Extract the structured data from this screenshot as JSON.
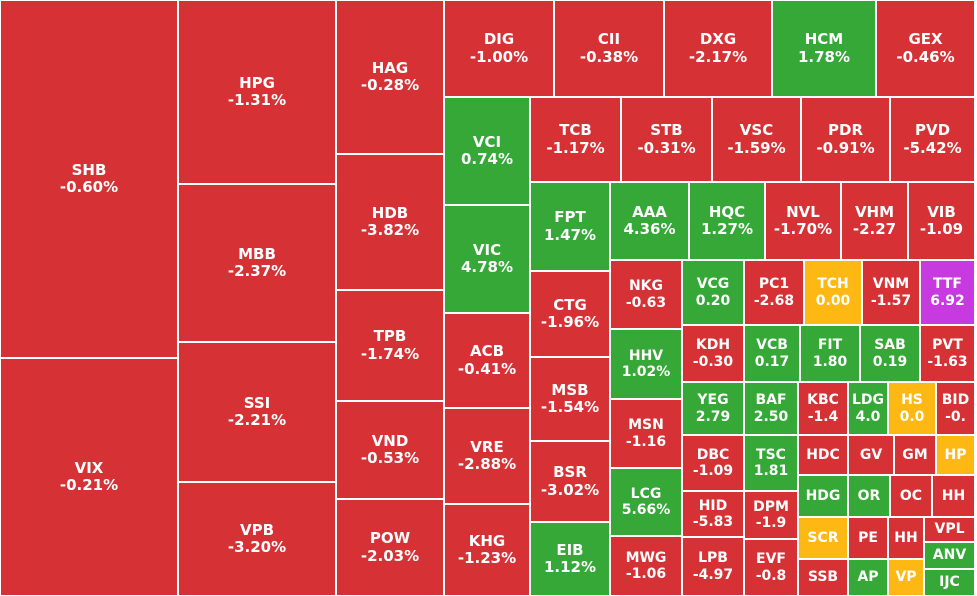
{
  "colors": {
    "down": "#d63236",
    "up": "#35a837",
    "flat": "#fdb813",
    "ceiling": "#c73ae0",
    "text": "#ffffff"
  },
  "chart_data": {
    "type": "treemap",
    "title": "",
    "tiles": [
      {
        "symbol": "SHB",
        "change": "-0.60%",
        "value": -0.6,
        "status": "down"
      },
      {
        "symbol": "VIX",
        "change": "-0.21%",
        "value": -0.21,
        "status": "down"
      },
      {
        "symbol": "HPG",
        "change": "-1.31%",
        "value": -1.31,
        "status": "down"
      },
      {
        "symbol": "MBB",
        "change": "-2.37%",
        "value": -2.37,
        "status": "down"
      },
      {
        "symbol": "SSI",
        "change": "-2.21%",
        "value": -2.21,
        "status": "down"
      },
      {
        "symbol": "VPB",
        "change": "-3.20%",
        "value": -3.2,
        "status": "down"
      },
      {
        "symbol": "HAG",
        "change": "-0.28%",
        "value": -0.28,
        "status": "down"
      },
      {
        "symbol": "HDB",
        "change": "-3.82%",
        "value": -3.82,
        "status": "down"
      },
      {
        "symbol": "TPB",
        "change": "-1.74%",
        "value": -1.74,
        "status": "down"
      },
      {
        "symbol": "VND",
        "change": "-0.53%",
        "value": -0.53,
        "status": "down"
      },
      {
        "symbol": "POW",
        "change": "-2.03%",
        "value": -2.03,
        "status": "down"
      },
      {
        "symbol": "DIG",
        "change": "-1.00%",
        "value": -1.0,
        "status": "down"
      },
      {
        "symbol": "CII",
        "change": "-0.38%",
        "value": -0.38,
        "status": "down"
      },
      {
        "symbol": "DXG",
        "change": "-2.17%",
        "value": -2.17,
        "status": "down"
      },
      {
        "symbol": "HCM",
        "change": "1.78%",
        "value": 1.78,
        "status": "up"
      },
      {
        "symbol": "GEX",
        "change": "-0.46%",
        "value": -0.46,
        "status": "down"
      },
      {
        "symbol": "VCI",
        "change": "0.74%",
        "value": 0.74,
        "status": "up"
      },
      {
        "symbol": "VIC",
        "change": "4.78%",
        "value": 4.78,
        "status": "up"
      },
      {
        "symbol": "ACB",
        "change": "-0.41%",
        "value": -0.41,
        "status": "down"
      },
      {
        "symbol": "VRE",
        "change": "-2.88%",
        "value": -2.88,
        "status": "down"
      },
      {
        "symbol": "KHG",
        "change": "-1.23%",
        "value": -1.23,
        "status": "down"
      },
      {
        "symbol": "TCB",
        "change": "-1.17%",
        "value": -1.17,
        "status": "down"
      },
      {
        "symbol": "STB",
        "change": "-0.31%",
        "value": -0.31,
        "status": "down"
      },
      {
        "symbol": "VSC",
        "change": "-1.59%",
        "value": -1.59,
        "status": "down"
      },
      {
        "symbol": "PDR",
        "change": "-0.91%",
        "value": -0.91,
        "status": "down"
      },
      {
        "symbol": "PVD",
        "change": "-5.42%",
        "value": -5.42,
        "status": "down"
      },
      {
        "symbol": "FPT",
        "change": "1.47%",
        "value": 1.47,
        "status": "up"
      },
      {
        "symbol": "AAA",
        "change": "4.36%",
        "value": 4.36,
        "status": "up"
      },
      {
        "symbol": "HQC",
        "change": "1.27%",
        "value": 1.27,
        "status": "up"
      },
      {
        "symbol": "NVL",
        "change": "-1.70%",
        "value": -1.7,
        "status": "down"
      },
      {
        "symbol": "VHM",
        "change": "-2.27",
        "value": -2.27,
        "status": "down"
      },
      {
        "symbol": "VIB",
        "change": "-1.09",
        "value": -1.09,
        "status": "down"
      },
      {
        "symbol": "CTG",
        "change": "-1.96%",
        "value": -1.96,
        "status": "down"
      },
      {
        "symbol": "MSB",
        "change": "-1.54%",
        "value": -1.54,
        "status": "down"
      },
      {
        "symbol": "BSR",
        "change": "-3.02%",
        "value": -3.02,
        "status": "down"
      },
      {
        "symbol": "EIB",
        "change": "1.12%",
        "value": 1.12,
        "status": "up"
      },
      {
        "symbol": "NKG",
        "change": "-0.63",
        "value": -0.63,
        "status": "down"
      },
      {
        "symbol": "HHV",
        "change": "1.02%",
        "value": 1.02,
        "status": "up"
      },
      {
        "symbol": "MSN",
        "change": "-1.16",
        "value": -1.16,
        "status": "down"
      },
      {
        "symbol": "LCG",
        "change": "5.66%",
        "value": 5.66,
        "status": "up"
      },
      {
        "symbol": "MWG",
        "change": "-1.06",
        "value": -1.06,
        "status": "down"
      },
      {
        "symbol": "VCG",
        "change": "0.20",
        "value": 0.2,
        "status": "up"
      },
      {
        "symbol": "PC1",
        "change": "-2.68",
        "value": -2.68,
        "status": "down"
      },
      {
        "symbol": "TCH",
        "change": "0.00",
        "value": 0.0,
        "status": "flat"
      },
      {
        "symbol": "VNM",
        "change": "-1.57",
        "value": -1.57,
        "status": "down"
      },
      {
        "symbol": "TTF",
        "change": "6.92",
        "value": 6.92,
        "status": "ceiling"
      },
      {
        "symbol": "KDH",
        "change": "-0.30",
        "value": -0.3,
        "status": "down"
      },
      {
        "symbol": "VCB",
        "change": "0.17",
        "value": 0.17,
        "status": "up"
      },
      {
        "symbol": "FIT",
        "change": "1.80",
        "value": 1.8,
        "status": "up"
      },
      {
        "symbol": "SAB",
        "change": "0.19",
        "value": 0.19,
        "status": "up"
      },
      {
        "symbol": "PVT",
        "change": "-1.63",
        "value": -1.63,
        "status": "down"
      },
      {
        "symbol": "YEG",
        "change": "2.79",
        "value": 2.79,
        "status": "up"
      },
      {
        "symbol": "BAF",
        "change": "2.50",
        "value": 2.5,
        "status": "up"
      },
      {
        "symbol": "KBC",
        "change": "-1.4",
        "value": -1.4,
        "status": "down"
      },
      {
        "symbol": "LDG",
        "change": "4.0",
        "value": 4.0,
        "status": "up"
      },
      {
        "symbol": "HS",
        "change": "0.0",
        "value": 0.0,
        "status": "flat"
      },
      {
        "symbol": "BID",
        "change": "-0.",
        "value": -0.0,
        "status": "down"
      },
      {
        "symbol": "DBC",
        "change": "-1.09",
        "value": -1.09,
        "status": "down"
      },
      {
        "symbol": "TSC",
        "change": "1.81",
        "value": 1.81,
        "status": "up"
      },
      {
        "symbol": "HDC",
        "change": "",
        "value": null,
        "status": "down"
      },
      {
        "symbol": "GV",
        "change": "",
        "value": null,
        "status": "down"
      },
      {
        "symbol": "GM",
        "change": "",
        "value": null,
        "status": "down"
      },
      {
        "symbol": "HP",
        "change": "",
        "value": null,
        "status": "flat"
      },
      {
        "symbol": "HID",
        "change": "-5.83",
        "value": -5.83,
        "status": "down"
      },
      {
        "symbol": "HDG",
        "change": "",
        "value": null,
        "status": "up"
      },
      {
        "symbol": "OR",
        "change": "",
        "value": null,
        "status": "up"
      },
      {
        "symbol": "OC",
        "change": "",
        "value": null,
        "status": "down"
      },
      {
        "symbol": "HH",
        "change": "",
        "value": null,
        "status": "down"
      },
      {
        "symbol": "DPM",
        "change": "-1.9",
        "value": -1.9,
        "status": "down"
      },
      {
        "symbol": "SCR",
        "change": "",
        "value": null,
        "status": "flat"
      },
      {
        "symbol": "PE",
        "change": "",
        "value": null,
        "status": "down"
      },
      {
        "symbol": "HH",
        "change": "",
        "value": null,
        "status": "down"
      },
      {
        "symbol": "VPL",
        "change": "",
        "value": null,
        "status": "down"
      },
      {
        "symbol": "LPB",
        "change": "-4.97",
        "value": -4.97,
        "status": "down"
      },
      {
        "symbol": "EVF",
        "change": "-0.8",
        "value": -0.8,
        "status": "down"
      },
      {
        "symbol": "SSB",
        "change": "",
        "value": null,
        "status": "down"
      },
      {
        "symbol": "AP",
        "change": "",
        "value": null,
        "status": "up"
      },
      {
        "symbol": "VP",
        "change": "",
        "value": null,
        "status": "flat"
      },
      {
        "symbol": "ANV",
        "change": "",
        "value": null,
        "status": "up"
      },
      {
        "symbol": "IJC",
        "change": "",
        "value": null,
        "status": "up"
      }
    ]
  }
}
